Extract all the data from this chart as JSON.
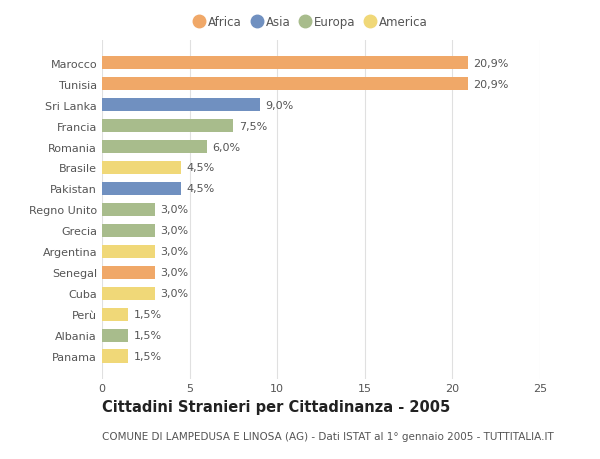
{
  "title": "Cittadini Stranieri per Cittadinanza - 2005",
  "subtitle": "COMUNE DI LAMPEDUSA E LINOSA (AG) - Dati ISTAT al 1° gennaio 2005 - TUTTITALIA.IT",
  "countries": [
    "Marocco",
    "Tunisia",
    "Sri Lanka",
    "Francia",
    "Romania",
    "Brasile",
    "Pakistan",
    "Regno Unito",
    "Grecia",
    "Argentina",
    "Senegal",
    "Cuba",
    "Perù",
    "Albania",
    "Panama"
  ],
  "values": [
    20.9,
    20.9,
    9.0,
    7.5,
    6.0,
    4.5,
    4.5,
    3.0,
    3.0,
    3.0,
    3.0,
    3.0,
    1.5,
    1.5,
    1.5
  ],
  "labels": [
    "20,9%",
    "20,9%",
    "9,0%",
    "7,5%",
    "6,0%",
    "4,5%",
    "4,5%",
    "3,0%",
    "3,0%",
    "3,0%",
    "3,0%",
    "3,0%",
    "1,5%",
    "1,5%",
    "1,5%"
  ],
  "continents": [
    "Africa",
    "Africa",
    "Asia",
    "Europa",
    "Europa",
    "America",
    "Asia",
    "Europa",
    "Europa",
    "America",
    "Africa",
    "America",
    "America",
    "Europa",
    "America"
  ],
  "colors": {
    "Africa": "#F0A868",
    "Asia": "#7090C0",
    "Europa": "#A8BC8C",
    "America": "#F0D878"
  },
  "legend_order": [
    "Africa",
    "Asia",
    "Europa",
    "America"
  ],
  "legend_colors": [
    "#F0A868",
    "#7090C0",
    "#A8BC8C",
    "#F0D878"
  ],
  "xlim": [
    0,
    25
  ],
  "xticks": [
    0,
    5,
    10,
    15,
    20,
    25
  ],
  "background_color": "#ffffff",
  "bar_height": 0.65,
  "grid_color": "#e0e0e0",
  "label_fontsize": 8,
  "tick_fontsize": 8,
  "title_fontsize": 10.5,
  "subtitle_fontsize": 7.5,
  "text_color": "#555555",
  "title_color": "#222222"
}
